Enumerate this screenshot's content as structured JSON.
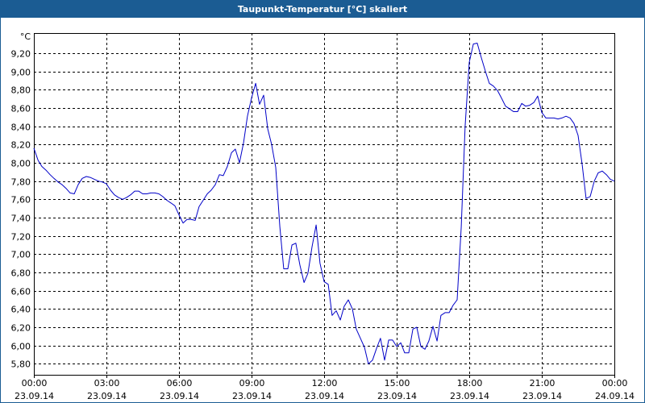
{
  "window": {
    "title": "Taupunkt-Temperatur [°C] skaliert"
  },
  "chart_data": {
    "type": "line",
    "title": "Taupunkt-Temperatur [°C] skaliert",
    "ylabel": "°C",
    "xlabel": "",
    "ylim": [
      5.68,
      9.42
    ],
    "y_ticks": [
      "5,80",
      "6,00",
      "6,20",
      "6,40",
      "6,60",
      "6,80",
      "7,00",
      "7,20",
      "7,40",
      "7,60",
      "7,80",
      "8,00",
      "8,20",
      "8,40",
      "8,60",
      "8,80",
      "9,00",
      "9,20"
    ],
    "y_tick_values": [
      5.8,
      6.0,
      6.2,
      6.4,
      6.6,
      6.8,
      7.0,
      7.2,
      7.4,
      7.6,
      7.8,
      8.0,
      8.2,
      8.4,
      8.6,
      8.8,
      9.0,
      9.2
    ],
    "x_ticks": [
      {
        "time": "00:00",
        "date": "23.09.14",
        "hour": 0
      },
      {
        "time": "03:00",
        "date": "23.09.14",
        "hour": 3
      },
      {
        "time": "06:00",
        "date": "23.09.14",
        "hour": 6
      },
      {
        "time": "09:00",
        "date": "23.09.14",
        "hour": 9
      },
      {
        "time": "12:00",
        "date": "23.09.14",
        "hour": 12
      },
      {
        "time": "15:00",
        "date": "23.09.14",
        "hour": 15
      },
      {
        "time": "18:00",
        "date": "23.09.14",
        "hour": 18
      },
      {
        "time": "21:00",
        "date": "23.09.14",
        "hour": 21
      },
      {
        "time": "00:00",
        "date": "24.09.14",
        "hour": 24
      }
    ],
    "xlim_hours": [
      0,
      24
    ],
    "grid": true,
    "series": [
      {
        "color": "#0000c8",
        "x_hours": [
          0.0,
          0.17,
          0.33,
          0.5,
          0.67,
          0.83,
          1.0,
          1.17,
          1.33,
          1.5,
          1.67,
          1.83,
          2.0,
          2.17,
          2.33,
          2.5,
          2.67,
          2.83,
          3.0,
          3.17,
          3.33,
          3.5,
          3.67,
          3.83,
          4.0,
          4.17,
          4.33,
          4.5,
          4.67,
          4.83,
          5.0,
          5.17,
          5.33,
          5.5,
          5.67,
          5.83,
          6.0,
          6.17,
          6.33,
          6.5,
          6.67,
          6.83,
          7.0,
          7.17,
          7.33,
          7.5,
          7.67,
          7.83,
          8.0,
          8.17,
          8.33,
          8.5,
          8.67,
          8.83,
          9.0,
          9.17,
          9.33,
          9.5,
          9.67,
          9.83,
          10.0,
          10.17,
          10.33,
          10.5,
          10.67,
          10.83,
          11.0,
          11.17,
          11.33,
          11.5,
          11.67,
          11.83,
          12.0,
          12.17,
          12.33,
          12.5,
          12.67,
          12.83,
          13.0,
          13.17,
          13.33,
          13.5,
          13.67,
          13.83,
          14.0,
          14.17,
          14.33,
          14.5,
          14.67,
          14.83,
          15.0,
          15.17,
          15.33,
          15.5,
          15.67,
          15.83,
          16.0,
          16.17,
          16.33,
          16.5,
          16.67,
          16.83,
          17.0,
          17.17,
          17.33,
          17.5,
          17.67,
          17.83,
          18.0,
          18.17,
          18.33,
          18.5,
          18.67,
          18.83,
          19.0,
          19.17,
          19.33,
          19.5,
          19.67,
          19.83,
          20.0,
          20.17,
          20.33,
          20.5,
          20.67,
          20.83,
          21.0,
          21.17,
          21.33,
          21.5,
          21.67,
          21.83,
          22.0,
          22.17,
          22.33,
          22.5,
          22.67,
          22.83,
          23.0,
          23.17,
          23.33,
          23.5,
          23.67,
          23.83,
          24.0
        ],
        "values": [
          8.16,
          8.03,
          7.96,
          7.92,
          7.87,
          7.83,
          7.79,
          7.76,
          7.72,
          7.67,
          7.66,
          7.76,
          7.83,
          7.85,
          7.84,
          7.82,
          7.8,
          7.79,
          7.77,
          7.7,
          7.65,
          7.62,
          7.6,
          7.62,
          7.65,
          7.69,
          7.69,
          7.66,
          7.66,
          7.67,
          7.67,
          7.66,
          7.63,
          7.59,
          7.56,
          7.53,
          7.43,
          7.34,
          7.38,
          7.38,
          7.37,
          7.52,
          7.59,
          7.66,
          7.7,
          7.76,
          7.87,
          7.86,
          7.96,
          8.11,
          8.15,
          8.0,
          8.22,
          8.51,
          8.71,
          8.87,
          8.64,
          8.74,
          8.37,
          8.2,
          7.95,
          7.3,
          6.84,
          6.84,
          7.1,
          7.12,
          6.88,
          6.69,
          6.79,
          7.08,
          7.32,
          6.9,
          6.7,
          6.67,
          6.33,
          6.38,
          6.28,
          6.43,
          6.5,
          6.4,
          6.18,
          6.08,
          5.98,
          5.8,
          5.84,
          5.97,
          6.08,
          5.84,
          6.06,
          6.06,
          5.99,
          6.03,
          5.92,
          5.92,
          6.18,
          6.2,
          5.99,
          5.96,
          6.05,
          6.21,
          6.05,
          6.33,
          6.36,
          6.36,
          6.44,
          6.5,
          7.3,
          8.4,
          9.1,
          9.3,
          9.31,
          9.15,
          9.0,
          8.87,
          8.84,
          8.79,
          8.71,
          8.62,
          8.59,
          8.56,
          8.56,
          8.65,
          8.62,
          8.63,
          8.66,
          8.73,
          8.55,
          8.49,
          8.49,
          8.49,
          8.48,
          8.49,
          8.51,
          8.49,
          8.43,
          8.3,
          7.98,
          7.61,
          7.63,
          7.8,
          7.89,
          7.91,
          7.87,
          7.82,
          7.8
        ]
      }
    ]
  }
}
